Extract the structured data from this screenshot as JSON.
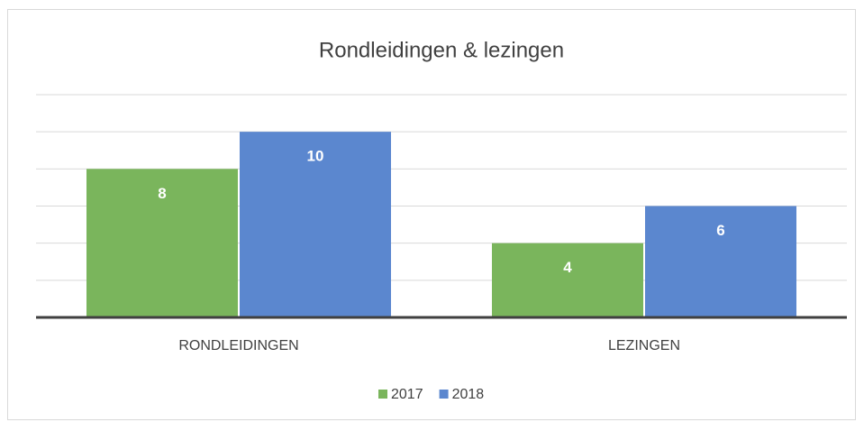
{
  "chart_data": {
    "type": "bar",
    "title": "Rondleidingen & lezingen",
    "categories": [
      "RONDLEIDINGEN",
      "LEZINGEN"
    ],
    "series": [
      {
        "name": "2017",
        "color": "#7ab55c",
        "values": [
          8,
          4
        ]
      },
      {
        "name": "2018",
        "color": "#5b87cf",
        "values": [
          10,
          6
        ]
      }
    ],
    "ylim": [
      0,
      12
    ],
    "yticks": [
      0,
      2,
      4,
      6,
      8,
      10,
      12
    ],
    "grid": true,
    "legend": "bottom"
  }
}
